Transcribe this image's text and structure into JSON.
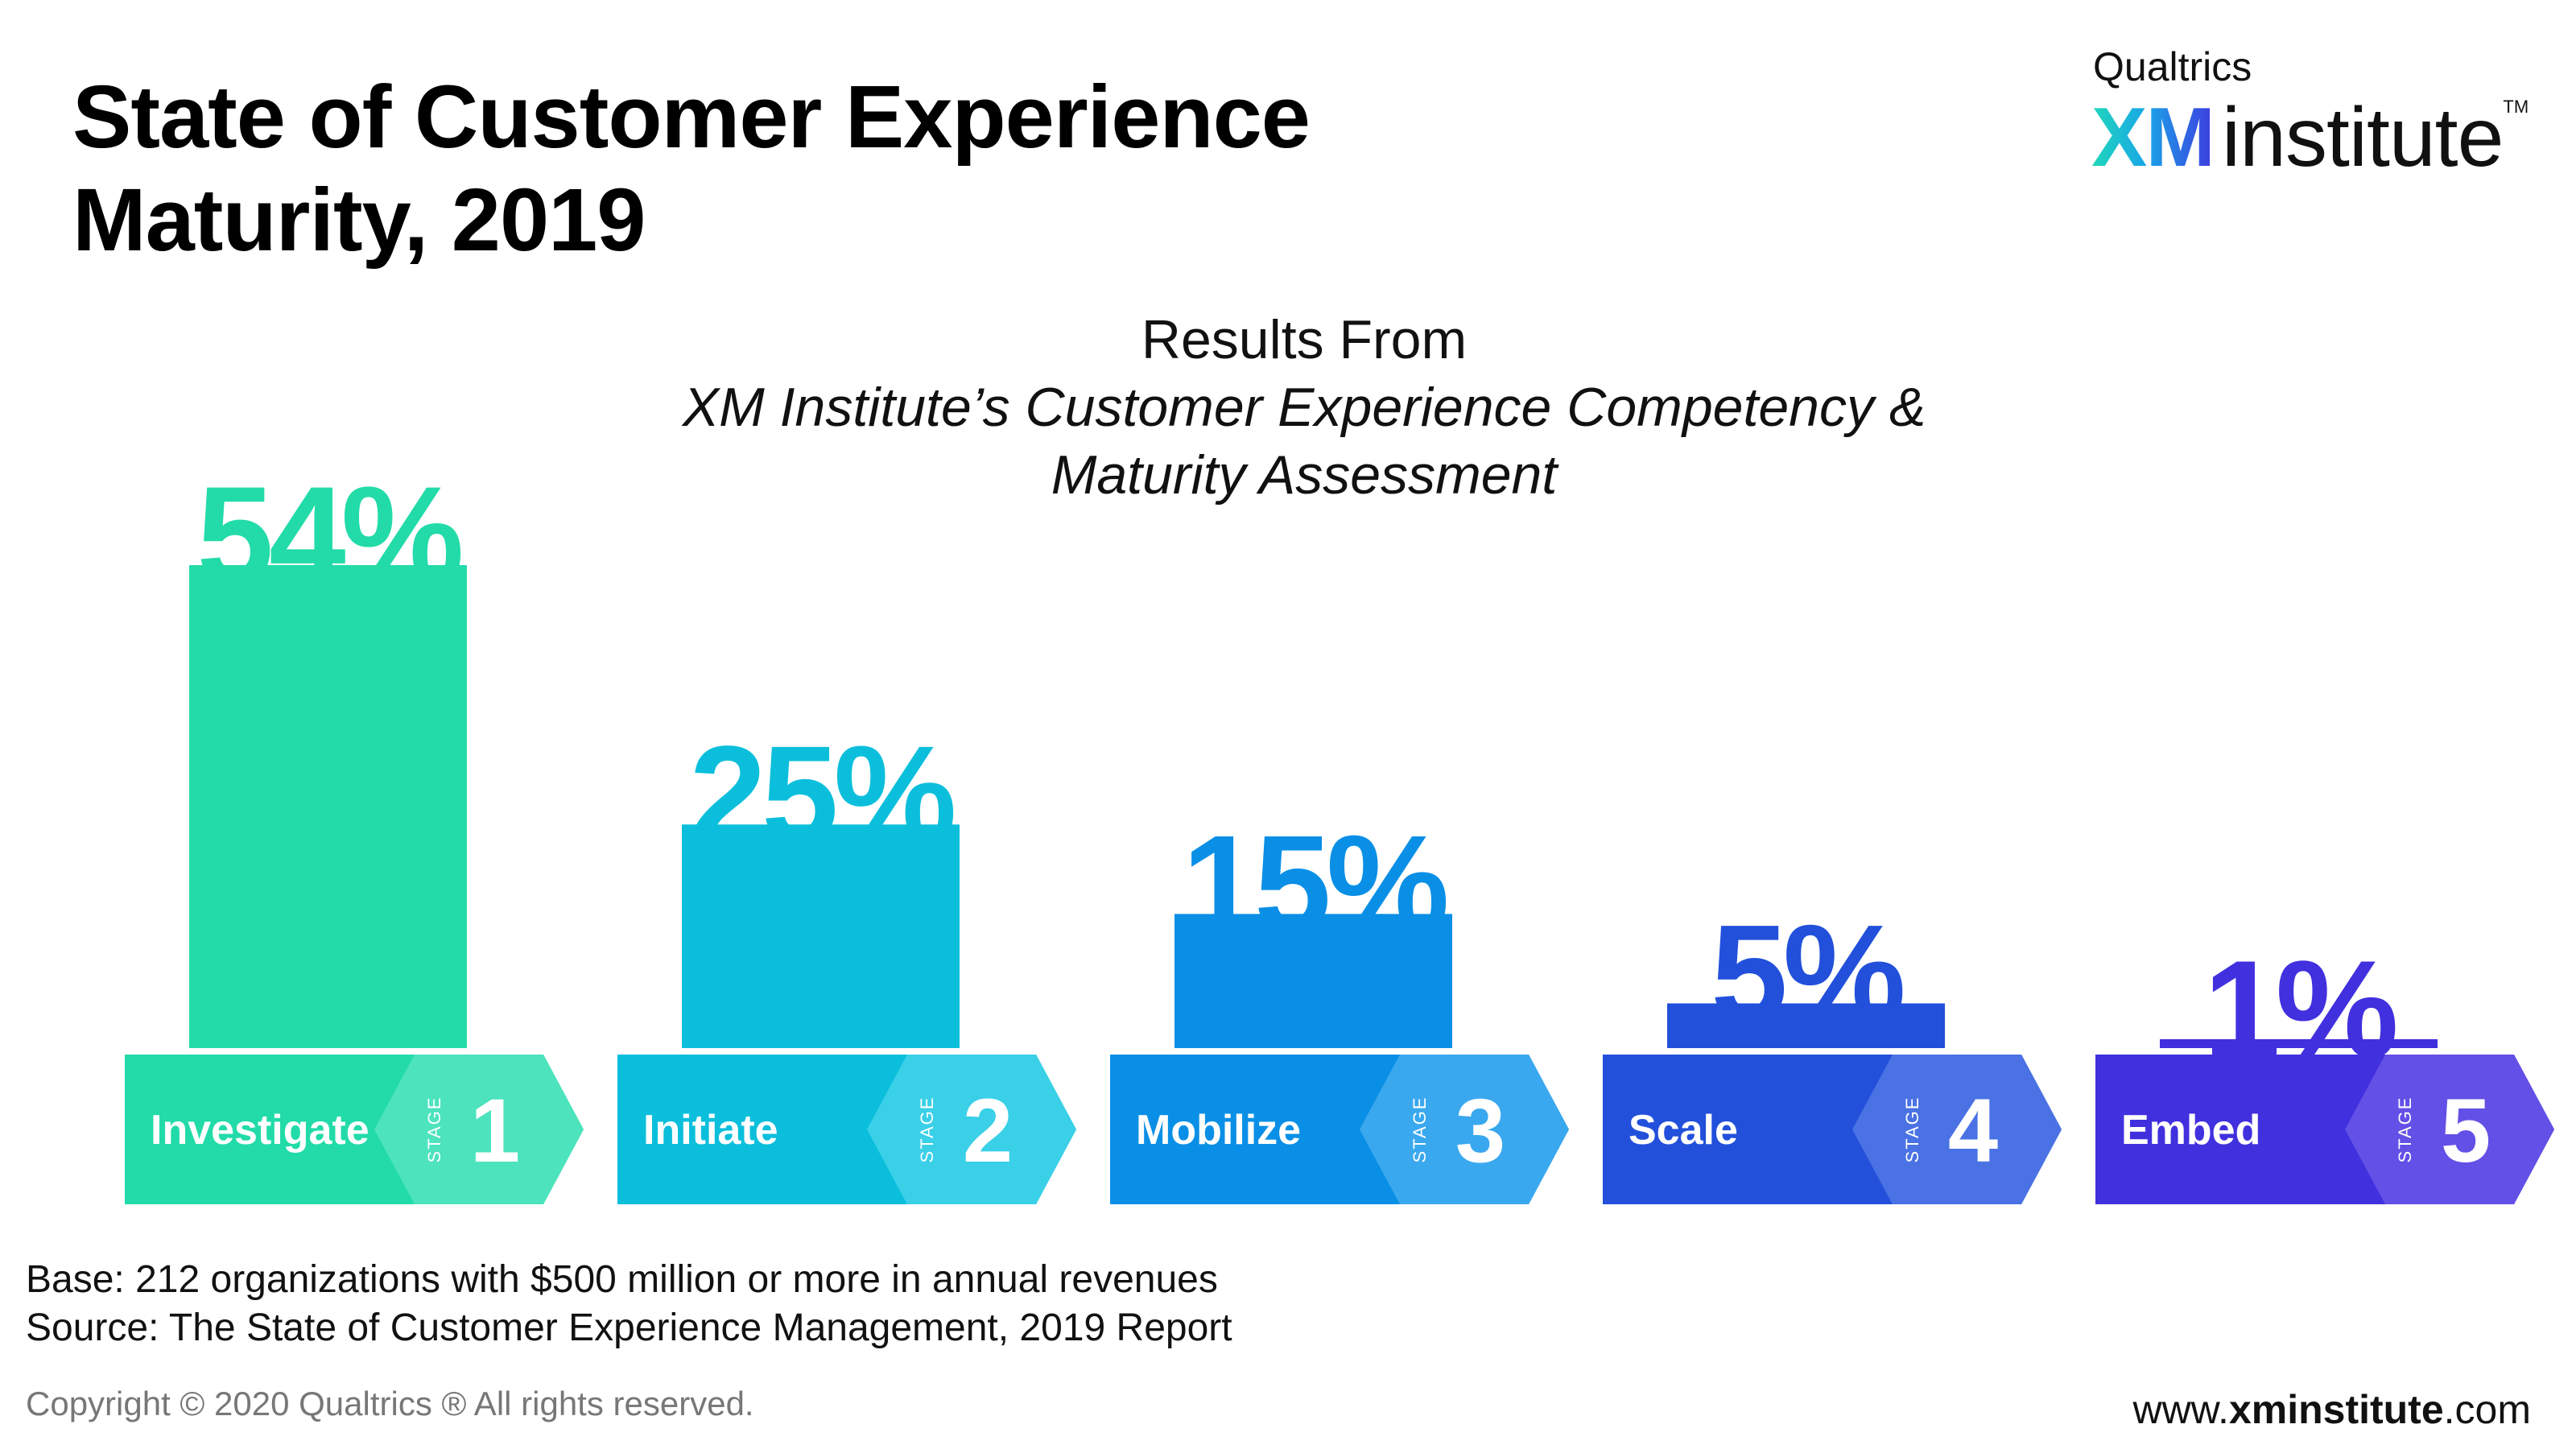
{
  "header": {
    "title_line1": "State of Customer Experience",
    "title_line2": "Maturity, 2019"
  },
  "logo": {
    "top_text": "Qualtrics",
    "xm": "XM",
    "institute": "institute",
    "tm": "TM"
  },
  "subtitle": {
    "prefix": "Results From ",
    "italic_line1": "XM Institute’s Customer Experience Competency &",
    "italic_line2": "Maturity Assessment"
  },
  "chart_data": {
    "type": "bar",
    "title": "State of Customer Experience Maturity, 2019",
    "subtitle": "Results From XM Institute’s Customer Experience Competency & Maturity Assessment",
    "categories": [
      "Investigate",
      "Initiate",
      "Mobilize",
      "Scale",
      "Embed"
    ],
    "values": [
      54,
      25,
      15,
      5,
      1
    ],
    "value_labels": [
      "54%",
      "25%",
      "15%",
      "5%",
      "1%"
    ],
    "stage_numbers": [
      "1",
      "2",
      "3",
      "4",
      "5"
    ],
    "stage_label": "STAGE",
    "unit": "%",
    "ylim": [
      0,
      54
    ],
    "grid": false,
    "bar_colors": [
      "#22dba8",
      "#0bbfdc",
      "#0a8fe6",
      "#2250db",
      "#4130de"
    ],
    "tab_colors": [
      "#4ce3bd",
      "#3ad0e8",
      "#3aa8ee",
      "#4a72e4",
      "#6350e6"
    ]
  },
  "footer": {
    "base_text": "Base: 212 organizations with $500 million or more in annual revenues",
    "source_text": "Source: The State of Customer Experience Management, 2019 Report",
    "copyright": "Copyright © 2020 Qualtrics ® All rights reserved.",
    "website_prefix": "www.",
    "website_bold": "xminstitute",
    "website_suffix": ".com"
  }
}
